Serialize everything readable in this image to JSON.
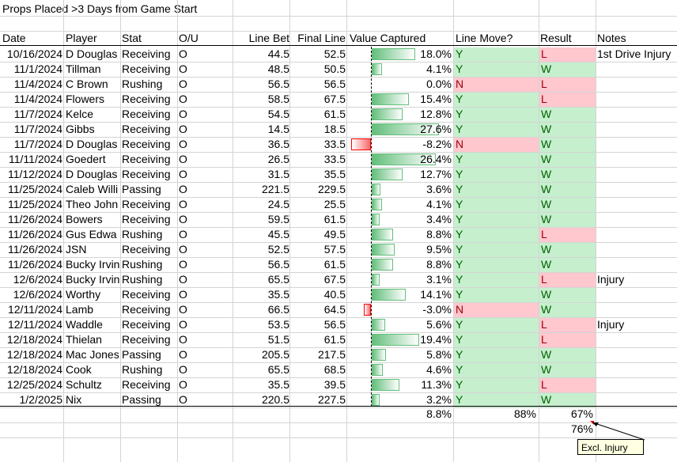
{
  "title": "Props Placed >3 Days from Game Start",
  "headers": {
    "date": "Date",
    "player": "Player",
    "stat": "Stat",
    "ou": "O/U",
    "line_bet": "Line Bet",
    "final_line": "Final Line",
    "value_captured": "Value Captured",
    "line_move": "Line Move?",
    "result": "Result",
    "notes": "Notes"
  },
  "rows": [
    {
      "date": "10/16/2024",
      "player": "D Douglas",
      "stat": "Receiving",
      "ou": "O",
      "line_bet": "44.5",
      "final_line": "52.5",
      "value": "18.0%",
      "pct": 18.0,
      "move": "Y",
      "result": "L",
      "notes": "1st Drive Injury"
    },
    {
      "date": "11/1/2024",
      "player": "Tillman",
      "stat": "Receiving",
      "ou": "O",
      "line_bet": "48.5",
      "final_line": "50.5",
      "value": "4.1%",
      "pct": 4.1,
      "move": "Y",
      "result": "W",
      "notes": ""
    },
    {
      "date": "11/4/2024",
      "player": "C Brown",
      "stat": "Rushing",
      "ou": "O",
      "line_bet": "56.5",
      "final_line": "56.5",
      "value": "0.0%",
      "pct": 0.0,
      "move": "N",
      "result": "L",
      "notes": ""
    },
    {
      "date": "11/4/2024",
      "player": "Flowers",
      "stat": "Receiving",
      "ou": "O",
      "line_bet": "58.5",
      "final_line": "67.5",
      "value": "15.4%",
      "pct": 15.4,
      "move": "Y",
      "result": "L",
      "notes": ""
    },
    {
      "date": "11/7/2024",
      "player": "Kelce",
      "stat": "Receiving",
      "ou": "O",
      "line_bet": "54.5",
      "final_line": "61.5",
      "value": "12.8%",
      "pct": 12.8,
      "move": "Y",
      "result": "W",
      "notes": ""
    },
    {
      "date": "11/7/2024",
      "player": "Gibbs",
      "stat": "Receiving",
      "ou": "O",
      "line_bet": "14.5",
      "final_line": "18.5",
      "value": "27.6%",
      "pct": 27.6,
      "move": "Y",
      "result": "W",
      "notes": ""
    },
    {
      "date": "11/7/2024",
      "player": "D Douglas",
      "stat": "Receiving",
      "ou": "O",
      "line_bet": "36.5",
      "final_line": "33.5",
      "value": "-8.2%",
      "pct": -8.2,
      "move": "N",
      "result": "W",
      "notes": ""
    },
    {
      "date": "11/11/2024",
      "player": "Goedert",
      "stat": "Receiving",
      "ou": "O",
      "line_bet": "26.5",
      "final_line": "33.5",
      "value": "26.4%",
      "pct": 26.4,
      "move": "Y",
      "result": "W",
      "notes": ""
    },
    {
      "date": "11/12/2024",
      "player": "D Douglas",
      "stat": "Receiving",
      "ou": "O",
      "line_bet": "31.5",
      "final_line": "35.5",
      "value": "12.7%",
      "pct": 12.7,
      "move": "Y",
      "result": "W",
      "notes": ""
    },
    {
      "date": "11/25/2024",
      "player": "Caleb Willi",
      "stat": "Passing",
      "ou": "O",
      "line_bet": "221.5",
      "final_line": "229.5",
      "value": "3.6%",
      "pct": 3.6,
      "move": "Y",
      "result": "W",
      "notes": ""
    },
    {
      "date": "11/25/2024",
      "player": "Theo John",
      "stat": "Receiving",
      "ou": "O",
      "line_bet": "24.5",
      "final_line": "25.5",
      "value": "4.1%",
      "pct": 4.1,
      "move": "Y",
      "result": "W",
      "notes": ""
    },
    {
      "date": "11/26/2024",
      "player": "Bowers",
      "stat": "Receiving",
      "ou": "O",
      "line_bet": "59.5",
      "final_line": "61.5",
      "value": "3.4%",
      "pct": 3.4,
      "move": "Y",
      "result": "W",
      "notes": ""
    },
    {
      "date": "11/26/2024",
      "player": "Gus Edwa",
      "stat": "Rushing",
      "ou": "O",
      "line_bet": "45.5",
      "final_line": "49.5",
      "value": "8.8%",
      "pct": 8.8,
      "move": "Y",
      "result": "L",
      "notes": ""
    },
    {
      "date": "11/26/2024",
      "player": "JSN",
      "stat": "Receiving",
      "ou": "O",
      "line_bet": "52.5",
      "final_line": "57.5",
      "value": "9.5%",
      "pct": 9.5,
      "move": "Y",
      "result": "W",
      "notes": ""
    },
    {
      "date": "11/26/2024",
      "player": "Bucky Irvin",
      "stat": "Rushing",
      "ou": "O",
      "line_bet": "56.5",
      "final_line": "61.5",
      "value": "8.8%",
      "pct": 8.8,
      "move": "Y",
      "result": "W",
      "notes": ""
    },
    {
      "date": "12/6/2024",
      "player": "Bucky Irvin",
      "stat": "Rushing",
      "ou": "O",
      "line_bet": "65.5",
      "final_line": "67.5",
      "value": "3.1%",
      "pct": 3.1,
      "move": "Y",
      "result": "L",
      "notes": "Injury"
    },
    {
      "date": "12/6/2024",
      "player": "Worthy",
      "stat": "Receiving",
      "ou": "O",
      "line_bet": "35.5",
      "final_line": "40.5",
      "value": "14.1%",
      "pct": 14.1,
      "move": "Y",
      "result": "W",
      "notes": ""
    },
    {
      "date": "12/11/2024",
      "player": "Lamb",
      "stat": "Receiving",
      "ou": "O",
      "line_bet": "66.5",
      "final_line": "64.5",
      "value": "-3.0%",
      "pct": -3.0,
      "move": "N",
      "result": "W",
      "notes": ""
    },
    {
      "date": "12/11/2024",
      "player": "Waddle",
      "stat": "Receiving",
      "ou": "O",
      "line_bet": "53.5",
      "final_line": "56.5",
      "value": "5.6%",
      "pct": 5.6,
      "move": "Y",
      "result": "L",
      "notes": "Injury"
    },
    {
      "date": "12/18/2024",
      "player": "Thielan",
      "stat": "Receiving",
      "ou": "O",
      "line_bet": "51.5",
      "final_line": "61.5",
      "value": "19.4%",
      "pct": 19.4,
      "move": "Y",
      "result": "L",
      "notes": ""
    },
    {
      "date": "12/18/2024",
      "player": "Mac Jones",
      "stat": "Passing",
      "ou": "O",
      "line_bet": "205.5",
      "final_line": "217.5",
      "value": "5.8%",
      "pct": 5.8,
      "move": "Y",
      "result": "W",
      "notes": ""
    },
    {
      "date": "12/18/2024",
      "player": "Cook",
      "stat": "Rushing",
      "ou": "O",
      "line_bet": "65.5",
      "final_line": "68.5",
      "value": "4.6%",
      "pct": 4.6,
      "move": "Y",
      "result": "W",
      "notes": ""
    },
    {
      "date": "12/25/2024",
      "player": "Schultz",
      "stat": "Receiving",
      "ou": "O",
      "line_bet": "35.5",
      "final_line": "39.5",
      "value": "11.3%",
      "pct": 11.3,
      "move": "Y",
      "result": "L",
      "notes": ""
    },
    {
      "date": "1/2/2025",
      "player": "Nix",
      "stat": "Passing",
      "ou": "O",
      "line_bet": "220.5",
      "final_line": "227.5",
      "value": "3.2%",
      "pct": 3.2,
      "move": "Y",
      "result": "W",
      "notes": ""
    }
  ],
  "totals": {
    "value_captured": "8.8%",
    "line_move": "88%",
    "result": "67%",
    "result_excl_injury": "76%"
  },
  "comment": "Excl. Injury",
  "colors": {
    "good_fill": "#c6efce",
    "bad_fill": "#ffc7ce",
    "good_text": "#006100",
    "bad_text": "#9c0006",
    "bar_positive": "#63be7b",
    "bar_negative": "#f8696b",
    "grid": "#d4d4d4"
  }
}
